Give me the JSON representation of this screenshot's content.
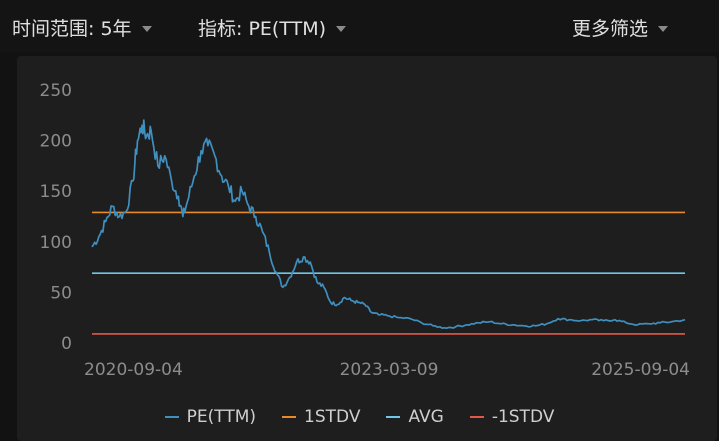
{
  "toolbar": {
    "time_range_label": "时间范围: 5年",
    "indicator_label": "指标: PE(TTM)",
    "more_filters_label": "更多筛选"
  },
  "colors": {
    "pe": "#3f8fbf",
    "stdv_plus": "#e8892e",
    "avg": "#6fc6e6",
    "stdv_minus": "#e2584a",
    "axis_text": "#8c8c8c",
    "background": "#1e1e1e"
  },
  "chart_data": {
    "type": "line",
    "ylim": [
      0,
      250
    ],
    "y_ticks": [
      0,
      50,
      100,
      150,
      200,
      250
    ],
    "x_tick_labels": [
      "2020-09-04",
      "2023-03-09",
      "2025-09-04"
    ],
    "x_range": [
      "2020-09-04",
      "2025-09-04"
    ],
    "grid": false,
    "legend_position": "bottom",
    "series": [
      {
        "name": "PE(TTM)",
        "x": [
          "2020-09-04",
          "2020-09-25",
          "2020-10-16",
          "2020-11-06",
          "2020-11-27",
          "2020-12-18",
          "2021-01-08",
          "2021-01-22",
          "2021-02-05",
          "2021-02-19",
          "2021-03-05",
          "2021-03-26",
          "2021-04-16",
          "2021-05-07",
          "2021-05-28",
          "2021-06-11",
          "2021-06-25",
          "2021-07-16",
          "2021-08-06",
          "2021-08-27",
          "2021-09-17",
          "2021-10-08",
          "2021-10-29",
          "2021-11-19",
          "2021-12-10",
          "2021-12-31",
          "2022-01-21",
          "2022-02-11",
          "2022-03-04",
          "2022-03-25",
          "2022-04-15",
          "2022-05-06",
          "2022-05-27",
          "2022-06-17",
          "2022-07-08",
          "2022-07-29",
          "2022-08-19",
          "2022-09-09",
          "2022-09-30",
          "2022-10-21",
          "2022-11-11",
          "2022-12-02",
          "2022-12-23",
          "2023-01-13",
          "2023-02-03",
          "2023-03-03",
          "2023-04-07",
          "2023-05-12",
          "2023-06-16",
          "2023-07-21",
          "2023-08-25",
          "2023-09-29",
          "2023-11-03",
          "2023-12-08",
          "2024-01-12",
          "2024-02-16",
          "2024-03-22",
          "2024-04-26",
          "2024-05-31",
          "2024-07-05",
          "2024-08-09",
          "2024-09-13",
          "2024-10-18",
          "2024-11-22",
          "2024-12-27",
          "2025-01-31",
          "2025-03-07",
          "2025-04-11",
          "2025-05-16",
          "2025-06-20",
          "2025-07-25",
          "2025-09-04"
        ],
        "values": [
          95,
          105,
          120,
          135,
          125,
          130,
          160,
          200,
          215,
          205,
          210,
          175,
          185,
          160,
          145,
          125,
          140,
          165,
          190,
          195,
          185,
          165,
          155,
          140,
          150,
          135,
          125,
          110,
          90,
          70,
          55,
          65,
          80,
          85,
          80,
          60,
          55,
          40,
          38,
          45,
          42,
          40,
          38,
          30,
          28,
          27,
          25,
          24,
          20,
          17,
          15,
          16,
          18,
          20,
          21,
          19,
          18,
          17,
          17,
          19,
          24,
          23,
          22,
          23,
          22,
          23,
          20,
          18,
          19,
          20,
          21,
          23
        ]
      },
      {
        "name": "1STDV",
        "value": 129
      },
      {
        "name": "AVG",
        "value": 69
      },
      {
        "name": "-1STDV",
        "value": 9
      }
    ]
  }
}
